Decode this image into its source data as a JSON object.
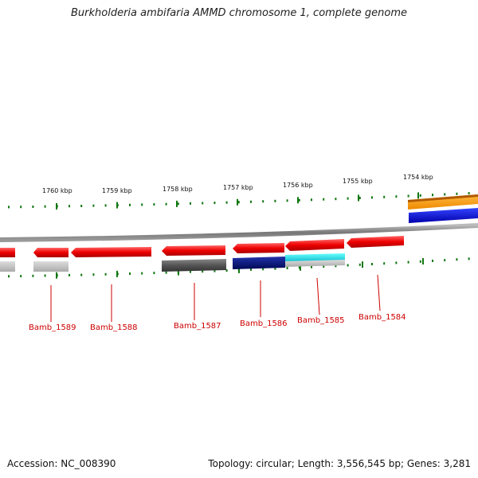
{
  "title": "Burkholderia ambifaria AMMD chromosome 1, complete genome",
  "footer": {
    "accession": "Accession: NC_008390",
    "summary": "Topology: circular; Length: 3,556,545 bp; Genes: 3,281"
  },
  "scale_labels": [
    "1760 kbp",
    "1759 kbp",
    "1758 kbp",
    "1757 kbp",
    "1756 kbp",
    "1755 kbp",
    "1754 kbp"
  ],
  "gene_labels": [
    "Bamb_1589",
    "Bamb_1588",
    "Bamb_1587",
    "Bamb_1586",
    "Bamb_1585",
    "Bamb_1584"
  ],
  "colors": {
    "red": "#ee1111",
    "dark_gray": "#555555",
    "navy": "#001177",
    "cyan": "#22dddd",
    "orange": "#ff9900",
    "blue": "#0000ee",
    "light_gray": "#bbbbbb",
    "tick_green": "#117711",
    "label_red": "#cc0000"
  }
}
